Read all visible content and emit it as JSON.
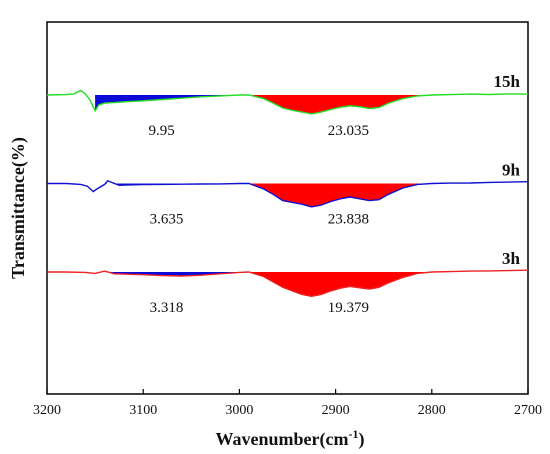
{
  "chart_data": {
    "type": "line",
    "title": "",
    "xlabel": "Wavenumber(cm",
    "xlabel_sup": "-1",
    "xlabel_close": ")",
    "ylabel": "Transmittance(%)",
    "xlim": [
      3200,
      2700
    ],
    "x_reversed": true,
    "xticks": [
      "3200",
      "3100",
      "3000",
      "2900",
      "2800",
      "2700"
    ],
    "yticks_shown": false,
    "grid": false,
    "series": [
      {
        "name": "15h",
        "color": "#22dd22",
        "baseline_offset": 2,
        "points": [
          [
            3200,
            0
          ],
          [
            3180,
            0.02
          ],
          [
            3172,
            0.06
          ],
          [
            3165,
            0.25
          ],
          [
            3160,
            0.05
          ],
          [
            3155,
            -0.3
          ],
          [
            3150,
            -0.88
          ],
          [
            3146,
            -0.55
          ],
          [
            3140,
            -0.45
          ],
          [
            3130,
            -0.42
          ],
          [
            3120,
            -0.38
          ],
          [
            3100,
            -0.32
          ],
          [
            3080,
            -0.25
          ],
          [
            3060,
            -0.18
          ],
          [
            3040,
            -0.1
          ],
          [
            3020,
            -0.05
          ],
          [
            3000,
            0
          ],
          [
            2990,
            0
          ],
          [
            2975,
            -0.2
          ],
          [
            2965,
            -0.45
          ],
          [
            2955,
            -0.72
          ],
          [
            2945,
            -0.85
          ],
          [
            2935,
            -0.95
          ],
          [
            2925,
            -1.05
          ],
          [
            2915,
            -0.95
          ],
          [
            2905,
            -0.8
          ],
          [
            2895,
            -0.68
          ],
          [
            2885,
            -0.6
          ],
          [
            2875,
            -0.65
          ],
          [
            2865,
            -0.75
          ],
          [
            2855,
            -0.7
          ],
          [
            2845,
            -0.45
          ],
          [
            2830,
            -0.2
          ],
          [
            2815,
            -0.05
          ],
          [
            2800,
            0
          ],
          [
            2780,
            0.02
          ],
          [
            2760,
            0.05
          ],
          [
            2740,
            0.03
          ],
          [
            2720,
            0.06
          ],
          [
            2700,
            0.05
          ]
        ],
        "areas": [
          {
            "label": "9.95",
            "from": 3150,
            "to": 2995,
            "color": "#0b0bd9"
          },
          {
            "label": "23.035",
            "from": 2990,
            "to": 2800,
            "color": "#ff0000"
          }
        ]
      },
      {
        "name": "9h",
        "color": "#1010d0",
        "baseline_offset": 1,
        "points": [
          [
            3200,
            0
          ],
          [
            3180,
            0
          ],
          [
            3165,
            -0.05
          ],
          [
            3158,
            -0.15
          ],
          [
            3152,
            -0.45
          ],
          [
            3148,
            -0.3
          ],
          [
            3140,
            -0.05
          ],
          [
            3137,
            0.15
          ],
          [
            3132,
            0.05
          ],
          [
            3125,
            -0.1
          ],
          [
            3115,
            -0.08
          ],
          [
            3100,
            -0.06
          ],
          [
            3080,
            -0.05
          ],
          [
            3060,
            -0.04
          ],
          [
            3040,
            -0.03
          ],
          [
            3020,
            -0.02
          ],
          [
            3000,
            0
          ],
          [
            2990,
            0
          ],
          [
            2975,
            -0.3
          ],
          [
            2965,
            -0.6
          ],
          [
            2955,
            -0.95
          ],
          [
            2945,
            -1.05
          ],
          [
            2935,
            -1.15
          ],
          [
            2925,
            -1.3
          ],
          [
            2915,
            -1.2
          ],
          [
            2905,
            -1.0
          ],
          [
            2895,
            -0.85
          ],
          [
            2885,
            -0.75
          ],
          [
            2875,
            -0.85
          ],
          [
            2865,
            -0.95
          ],
          [
            2855,
            -0.9
          ],
          [
            2845,
            -0.6
          ],
          [
            2830,
            -0.25
          ],
          [
            2815,
            -0.05
          ],
          [
            2800,
            0
          ],
          [
            2780,
            0.02
          ],
          [
            2760,
            0.03
          ],
          [
            2740,
            0.06
          ],
          [
            2720,
            0.08
          ],
          [
            2700,
            0.1
          ]
        ],
        "areas": [
          {
            "label": "3.635",
            "from": 3140,
            "to": 2995,
            "color": "#0b0bd9"
          },
          {
            "label": "23.838",
            "from": 2990,
            "to": 2800,
            "color": "#ff0000"
          }
        ]
      },
      {
        "name": "3h",
        "color": "#ee2222",
        "baseline_offset": 0,
        "points": [
          [
            3200,
            0
          ],
          [
            3180,
            0
          ],
          [
            3160,
            -0.02
          ],
          [
            3150,
            -0.08
          ],
          [
            3140,
            0.05
          ],
          [
            3130,
            -0.1
          ],
          [
            3100,
            -0.15
          ],
          [
            3080,
            -0.2
          ],
          [
            3060,
            -0.22
          ],
          [
            3040,
            -0.18
          ],
          [
            3020,
            -0.1
          ],
          [
            3000,
            -0.02
          ],
          [
            2990,
            0
          ],
          [
            2975,
            -0.25
          ],
          [
            2965,
            -0.55
          ],
          [
            2955,
            -0.85
          ],
          [
            2945,
            -1.05
          ],
          [
            2935,
            -1.25
          ],
          [
            2925,
            -1.35
          ],
          [
            2915,
            -1.25
          ],
          [
            2905,
            -1.05
          ],
          [
            2895,
            -0.9
          ],
          [
            2885,
            -0.8
          ],
          [
            2875,
            -0.88
          ],
          [
            2865,
            -0.95
          ],
          [
            2855,
            -0.85
          ],
          [
            2845,
            -0.6
          ],
          [
            2830,
            -0.3
          ],
          [
            2815,
            -0.08
          ],
          [
            2800,
            0
          ],
          [
            2780,
            0.02
          ],
          [
            2760,
            0.05
          ],
          [
            2740,
            0.06
          ],
          [
            2720,
            0.08
          ],
          [
            2700,
            0.1
          ]
        ],
        "areas": [
          {
            "label": "3.318",
            "from": 3140,
            "to": 2995,
            "color": "#0b0bd9"
          },
          {
            "label": "19.379",
            "from": 2990,
            "to": 2800,
            "color": "#ff0000"
          }
        ]
      }
    ]
  }
}
